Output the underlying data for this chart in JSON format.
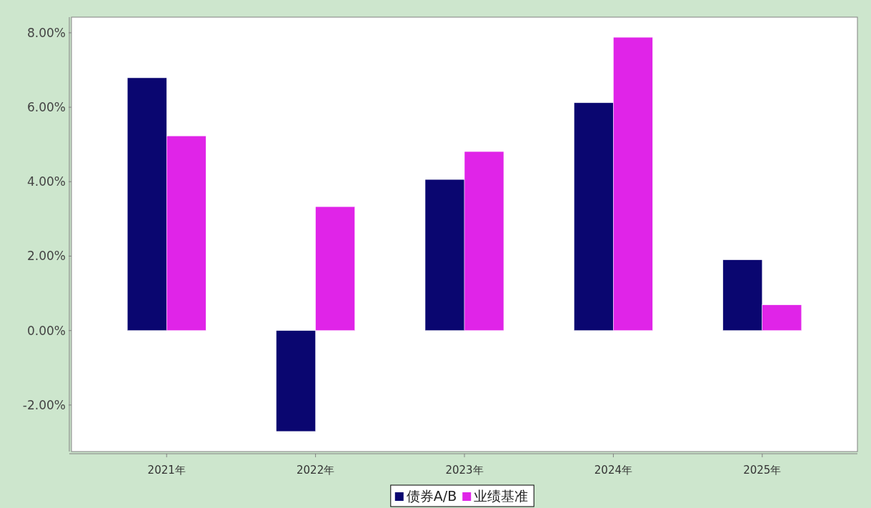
{
  "chart_data": {
    "type": "bar",
    "categories": [
      "2021年",
      "2022年",
      "2023年",
      "2024年",
      "2025年"
    ],
    "series": [
      {
        "name": "债券A/B",
        "color": "#0a0670",
        "values": [
          6.79,
          -2.71,
          4.06,
          6.12,
          1.9
        ]
      },
      {
        "name": "业绩基准",
        "color": "#e024e8",
        "values": [
          5.23,
          3.33,
          4.81,
          7.88,
          0.69
        ]
      }
    ],
    "ylim": [
      -3.25,
      8.42
    ],
    "yticks": [
      {
        "value": -2,
        "label": "-2.00%"
      },
      {
        "value": 0,
        "label": "0.00%"
      },
      {
        "value": 2,
        "label": "2.00%"
      },
      {
        "value": 4,
        "label": "4.00%"
      },
      {
        "value": 6,
        "label": "6.00%"
      },
      {
        "value": 8,
        "label": "8.00%"
      }
    ],
    "grid": false,
    "legend": "bottom"
  }
}
